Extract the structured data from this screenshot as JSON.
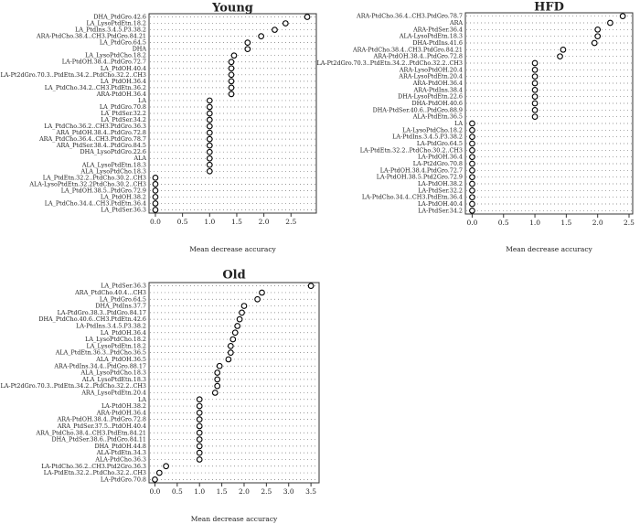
{
  "chart_data": [
    {
      "type": "scatter",
      "title": "Young",
      "xlabel": "Mean decrease accuracy",
      "xlim": [
        -0.05,
        2.9
      ],
      "xticks": [
        0.0,
        0.5,
        1.0,
        1.5,
        2.0,
        2.5
      ],
      "xtick_labels": [
        "0.0",
        "0.5",
        "1.0",
        "1.5",
        "2.0",
        "2.5"
      ],
      "marker": "open-circle",
      "categories": [
        "DHA_PtdGro.42.6",
        "LA_LysoPtdEtn.18.2",
        "LA_PtdIns.3.4.5.P3.38.2",
        "ARA-PtdCho.38.4..CH3.PtdGro.84.21",
        "LA_PtdGro.64.5",
        "DHA",
        "LA_LysoPtdCho.18.2",
        "LA-PtdOH.38.4..PtdGro.72.7",
        "LA_PtdOH.40.4",
        "LA-Pt2dGro.70.3..PtdEtn.34.2..PtdCho.32.2..CH3",
        "LA_PtdOH.36.4",
        "LA_PtdCho.34.2..CH3.PtdEtn.36.2",
        "ARA-PtdOH.36.4",
        "LA",
        "LA_PtdGro.70.8",
        "LA_PtdSer.32.2",
        "LA_PtdSer.34.2",
        "LA_PtdCho.36.2..CH3.PtdGro.36.3",
        "ARA_PtdOH.38.4..PtdGro.72.8",
        "ARA_PtdCho.36.4..CH3.PtdGro.78.7",
        "ARA_PtdSer.38.4..PtdGro.84.5",
        "DHA_LysoPtdGro.22.6",
        "ALA",
        "ALA_LysoPtdEtn.18.3",
        "ALA_LysoPtdCho.18.3",
        "LA_PtdEtn.32.2..PtdCho.30.2..CH3",
        "ALA-LysoPtdEtn.32.2PtdCho.30.2..CH3",
        "LA_PtdOH.38.5..PtdGro.72.9",
        "LA_PtdOH.38.2",
        "LA_PtdCho.34.4..CH3.PtdEtn.36.4",
        "LA_PtdSer.36.3"
      ],
      "values": [
        2.8,
        2.4,
        2.2,
        1.95,
        1.7,
        1.7,
        1.45,
        1.4,
        1.4,
        1.4,
        1.4,
        1.4,
        1.4,
        1.0,
        1.0,
        1.0,
        1.0,
        1.0,
        1.0,
        1.0,
        1.0,
        1.0,
        1.0,
        1.0,
        1.0,
        0.0,
        0.0,
        0.0,
        0.0,
        0.0,
        0.0
      ]
    },
    {
      "type": "scatter",
      "title": "HFD",
      "xlabel": "Mean decrease accuracy",
      "xlim": [
        -0.05,
        2.5
      ],
      "xticks": [
        0.0,
        0.5,
        1.0,
        1.5,
        2.0,
        2.5
      ],
      "xtick_labels": [
        "0.0",
        "0.5",
        "1.0",
        "1.5",
        "2.0",
        "2.5"
      ],
      "marker": "open-circle",
      "categories": [
        "ARA-PtdCho.36.4..CH3.PtdGro.78.7",
        "ARA",
        "ARA-PtdSer.36.4",
        "ALA-LysoPtdEtn.18.3",
        "DHA-PtdIns.41.6",
        "ARA-PtdCho.38.4..CH3.PtdGro.84.21",
        "ARA-PtdOH.38.4..PtdGro.72.8",
        "LA-Pt2dGro.70.3..PtdEtn.34.2..PtdCho.32.2..CH3",
        "ARA-LysoPtdOH.20.4",
        "ARA-LysoPtdEtn.20.4",
        "ARA-PtdOH.36.4",
        "ARA-PtdIns.38.4",
        "DHA-LysoPtdEtn.22.6",
        "DHA-PtdOH.40.6",
        "DHA-PtdSer.40.6..PtdGro.88.9",
        "ALA-PtdEtn.36.5",
        "LA",
        "LA-LysoPtdCho.18.2",
        "LA-PtdIns.3.4.5.P3.38.2",
        "LA-PtdGro.64.5",
        "LA-PtdEtn.32.2..PtdCho.30.2..CH3",
        "LA-PtdOH.36.4",
        "LA-Pt2dGro.70.8",
        "LA-PtdOH.38.4.PtdGro.72.7",
        "LA-PtdOH.38.5.Ptd2Gro.72.9",
        "LA-PtdOH.38.2",
        "LA-PtdSer.32.2",
        "LA-PtdCho.34.4..CH3.PtdEtn.36.4",
        "LA-PtdOH.40.4",
        "LA-PtdSer.34.2"
      ],
      "values": [
        2.4,
        2.2,
        2.0,
        2.0,
        1.95,
        1.45,
        1.4,
        1.0,
        1.0,
        1.0,
        1.0,
        1.0,
        1.0,
        1.0,
        1.0,
        1.0,
        0.0,
        0.0,
        0.0,
        0.0,
        0.0,
        0.0,
        0.0,
        0.0,
        0.0,
        0.0,
        0.0,
        0.0,
        0.0,
        0.0
      ]
    },
    {
      "type": "scatter",
      "title": "Old",
      "xlabel": "Mean decrease accuracy",
      "xlim": [
        -0.05,
        3.6
      ],
      "xticks": [
        0.0,
        0.5,
        1.0,
        1.5,
        2.0,
        2.5,
        3.0,
        3.5
      ],
      "xtick_labels": [
        "0.0",
        "0.5",
        "1.0",
        "1.5",
        "2.0",
        "2.5",
        "3.0",
        "3.5"
      ],
      "marker": "open-circle",
      "categories": [
        "LA_PtdSer.36.3",
        "ARA_PtdCho.40.4...CH3",
        "LA_PtdGro.64.5",
        "DHA_PtdIns.37.7",
        "LA-PtdGro.38.3..PtdGro.84.17",
        "DHA_PtdCho.40.6..CH3.PtdEtn.42.6",
        "LA-PtdIns.3.4.5.P3.38.2",
        "LA_PtdOH.36.4",
        "LA_LysoPtdCho.18.2",
        "LA_LysoPtdEtn.18.2",
        "ALA_PtdEtn.36.3..PtdCho.36.5",
        "ALA_PtdOH.36.5",
        "ARA-PtdIns.34.4..PtdGro.88.17",
        "ALA_LysoPtdCho.18.3",
        "ALA_LysoPtdEtn.18.3",
        "LA-Pt2dGro.70.3..PtdEtn.34.2..PtdCho.32.2..CH3",
        "ARA_LysoPtdEtn.20.4",
        "LA",
        "LA-PtdOH.38.2",
        "ARA-PtdOH.36.4",
        "ARA-PtdOH.38.4..PtdGro.72.8",
        "ARA_PtdSer.37.5..PtdOH.40.4",
        "ARA_PtdCho.38.4..CH3.PtdEtn.84.21",
        "DHA_PtdSer.38.6..PtdGro.84.11",
        "DHA_PtdOH.44.8",
        "ALA-PtdEtn.34.3",
        "ALA-PtdCho.36.3",
        "LA-PtdCho.36.2..CH3.Ptd2Gro.36.3",
        "LA-PtdEtn.32.2..PtdCho.32.2..CH3",
        "LA-PtdGro.70.8"
      ],
      "values": [
        3.5,
        2.4,
        2.3,
        2.0,
        1.95,
        1.9,
        1.85,
        1.8,
        1.75,
        1.7,
        1.7,
        1.65,
        1.45,
        1.4,
        1.4,
        1.4,
        1.35,
        1.0,
        1.0,
        1.0,
        1.0,
        1.0,
        1.0,
        1.0,
        1.0,
        1.0,
        1.0,
        0.25,
        0.1,
        0.0
      ]
    }
  ]
}
